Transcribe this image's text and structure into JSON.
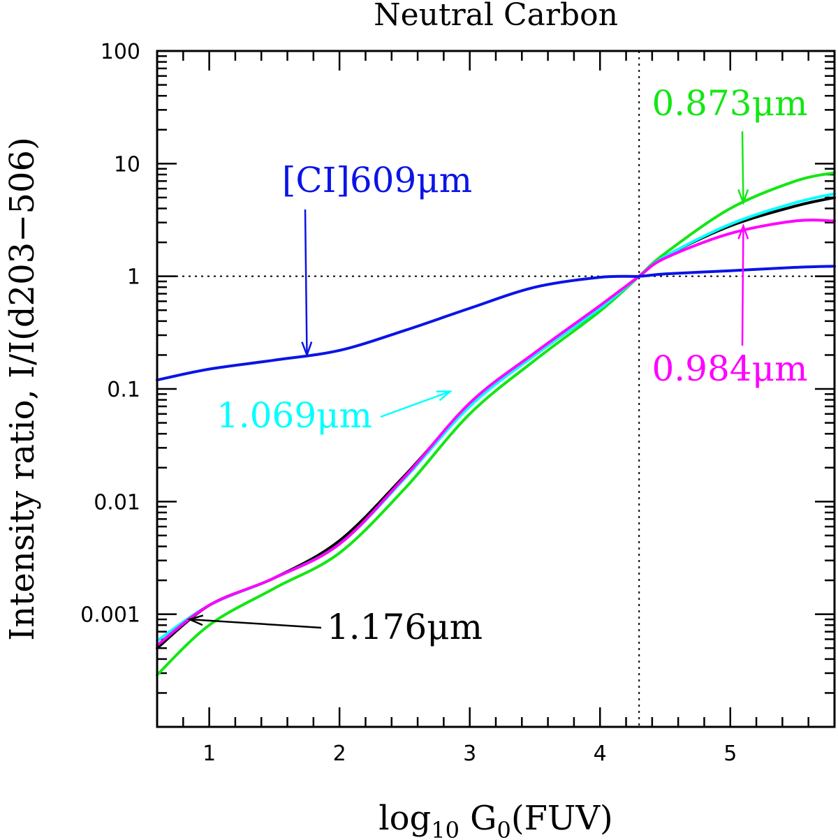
{
  "chart_data": {
    "type": "line",
    "title": "Neutral Carbon",
    "xlabel": {
      "prefix": "log",
      "sub1": "10",
      "mid": " G",
      "sub2": "0",
      "suffix": "(FUV)"
    },
    "ylabel": "Intensity ratio, I/I(d203−506)",
    "xlim": [
      0.6,
      5.8
    ],
    "ylim": [
      0.0001,
      100
    ],
    "yscale": "log",
    "x_ticks": [
      "1",
      "2",
      "3",
      "4",
      "5"
    ],
    "y_ticks": [
      {
        "value": 100,
        "label": "100"
      },
      {
        "value": 10,
        "label": "10"
      },
      {
        "value": 1,
        "label": "1"
      },
      {
        "value": 0.1,
        "label": "0.1"
      },
      {
        "value": 0.01,
        "label": "0.01"
      },
      {
        "value": 0.001,
        "label": "0.001"
      }
    ],
    "reference_lines": {
      "vertical_x": 4.3,
      "horizontal_y": 1
    },
    "series": [
      {
        "label": "[CI]609μm",
        "color": "#0a14e6",
        "x": [
          0.6,
          1.0,
          1.5,
          2.0,
          2.5,
          3.0,
          3.5,
          4.0,
          4.3,
          4.5,
          5.0,
          5.5,
          5.8
        ],
        "y": [
          0.12,
          0.15,
          0.18,
          0.22,
          0.33,
          0.52,
          0.8,
          0.98,
          1.0,
          1.05,
          1.12,
          1.2,
          1.23
        ]
      },
      {
        "label": "1.176μm",
        "color": "#000000",
        "x": [
          0.6,
          1.0,
          1.5,
          2.0,
          2.5,
          3.0,
          3.5,
          4.0,
          4.3,
          4.5,
          5.0,
          5.5,
          5.8
        ],
        "y": [
          0.0005,
          0.0012,
          0.0021,
          0.0045,
          0.017,
          0.072,
          0.2,
          0.52,
          1.0,
          1.5,
          2.8,
          4.2,
          5.0
        ]
      },
      {
        "label": "1.069μm",
        "color": "#00ffff",
        "x": [
          0.6,
          1.0,
          1.5,
          2.0,
          2.5,
          3.0,
          3.5,
          4.0,
          4.3,
          4.5,
          5.0,
          5.5,
          5.8
        ],
        "y": [
          0.00058,
          0.0012,
          0.0021,
          0.0042,
          0.016,
          0.07,
          0.2,
          0.52,
          1.0,
          1.5,
          2.9,
          4.5,
          5.4
        ]
      },
      {
        "label": "0.984μm",
        "color": "#ff00ff",
        "x": [
          0.6,
          1.0,
          1.5,
          2.0,
          2.5,
          3.0,
          3.5,
          4.0,
          4.3,
          4.5,
          5.0,
          5.5,
          5.8
        ],
        "y": [
          0.00053,
          0.0012,
          0.0021,
          0.0042,
          0.0165,
          0.075,
          0.21,
          0.55,
          1.0,
          1.45,
          2.4,
          3.1,
          3.1
        ]
      },
      {
        "label": "0.873μm",
        "color": "#14e614",
        "x": [
          0.6,
          1.0,
          1.5,
          2.0,
          2.5,
          3.0,
          3.5,
          4.0,
          4.3,
          4.5,
          5.0,
          5.5,
          5.8
        ],
        "y": [
          0.00029,
          0.0008,
          0.0017,
          0.0035,
          0.013,
          0.06,
          0.18,
          0.49,
          1.0,
          1.6,
          4.0,
          7.0,
          8.3
        ]
      }
    ],
    "annotations": [
      {
        "text": "[CI]609μm",
        "color": "#0a14e6",
        "points_to": {
          "x": 1.75,
          "y": 0.2
        }
      },
      {
        "text": "1.069μm",
        "color": "#00ffff",
        "points_to": {
          "x": 2.85,
          "y": 0.095
        }
      },
      {
        "text": "1.176μm",
        "color": "#000000",
        "points_to": {
          "x": 0.85,
          "y": 0.0009
        }
      },
      {
        "text": "0.873μm",
        "color": "#14e614",
        "points_to": {
          "x": 5.1,
          "y": 4.5
        }
      },
      {
        "text": "0.984μm",
        "color": "#ff00ff",
        "points_to": {
          "x": 5.1,
          "y": 2.8
        }
      }
    ]
  }
}
